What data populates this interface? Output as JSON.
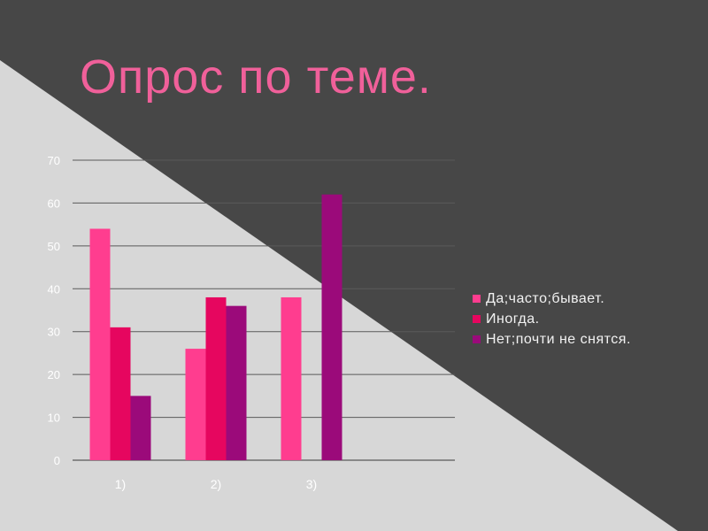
{
  "slide": {
    "title": "Опрос по теме."
  },
  "colors": {
    "background_light": "#d7d7d7",
    "background_dark": "#474747",
    "title": "#f0609a",
    "gridline": "#5a5a5a"
  },
  "chart_data": {
    "type": "bar",
    "categories": [
      "1)",
      "2)",
      "3)",
      ""
    ],
    "series": [
      {
        "name": "Да;часто;бывает.",
        "color": "#ff3d8f",
        "values": [
          54,
          26,
          38,
          null
        ]
      },
      {
        "name": "Иногда.",
        "color": "#e6065f",
        "values": [
          31,
          38,
          null,
          null
        ]
      },
      {
        "name": "Нет;почти не снятся.",
        "color": "#9b0a7a",
        "values": [
          15,
          36,
          62,
          null
        ]
      }
    ],
    "y_ticks": [
      "0",
      "10",
      "20",
      "30",
      "40",
      "50",
      "60",
      "70"
    ],
    "ylim": [
      0,
      70
    ],
    "grid": true,
    "legend_position": "right"
  }
}
